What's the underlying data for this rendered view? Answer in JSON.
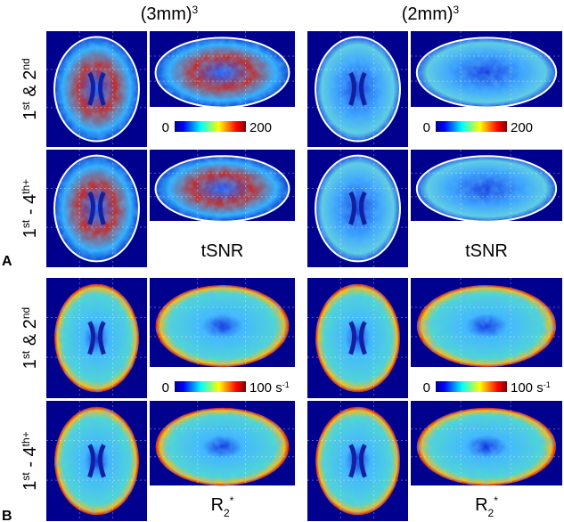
{
  "columns": [
    [
      {
        "text": "(3mm)"
      },
      {
        "text": "3",
        "script": "super"
      }
    ],
    [
      {
        "text": "(2mm)"
      },
      {
        "text": "3",
        "script": "super"
      }
    ]
  ],
  "panels": [
    {
      "letter": "A",
      "rows": [
        [
          {
            "text": "1"
          },
          {
            "text": "st",
            "script": "super"
          },
          {
            "text": " & 2"
          },
          {
            "text": "nd",
            "script": "super"
          }
        ],
        [
          {
            "text": "1"
          },
          {
            "text": "st",
            "script": "super"
          },
          {
            "text": " - 4"
          },
          {
            "text": "th+",
            "script": "super"
          }
        ]
      ],
      "colorbar": [
        [
          {
            "text": "0"
          }
        ],
        [
          {
            "text": "200"
          }
        ]
      ],
      "measure": [
        {
          "text": "tSNR"
        }
      ]
    },
    {
      "letter": "B",
      "rows": [
        [
          {
            "text": "1"
          },
          {
            "text": "st",
            "script": "super"
          },
          {
            "text": " & 2"
          },
          {
            "text": "nd",
            "script": "super"
          }
        ],
        [
          {
            "text": "1"
          },
          {
            "text": "st",
            "script": "super"
          },
          {
            "text": " - 4"
          },
          {
            "text": "th+",
            "script": "super"
          }
        ]
      ],
      "colorbar": [
        [
          {
            "text": "0"
          }
        ],
        [
          {
            "text": "100 s"
          },
          {
            "text": "-1",
            "script": "super"
          }
        ]
      ],
      "measure": [
        {
          "text": "R"
        },
        {
          "text": "2",
          "script": "sub"
        },
        {
          "text": "*",
          "script": "super"
        }
      ]
    }
  ]
}
